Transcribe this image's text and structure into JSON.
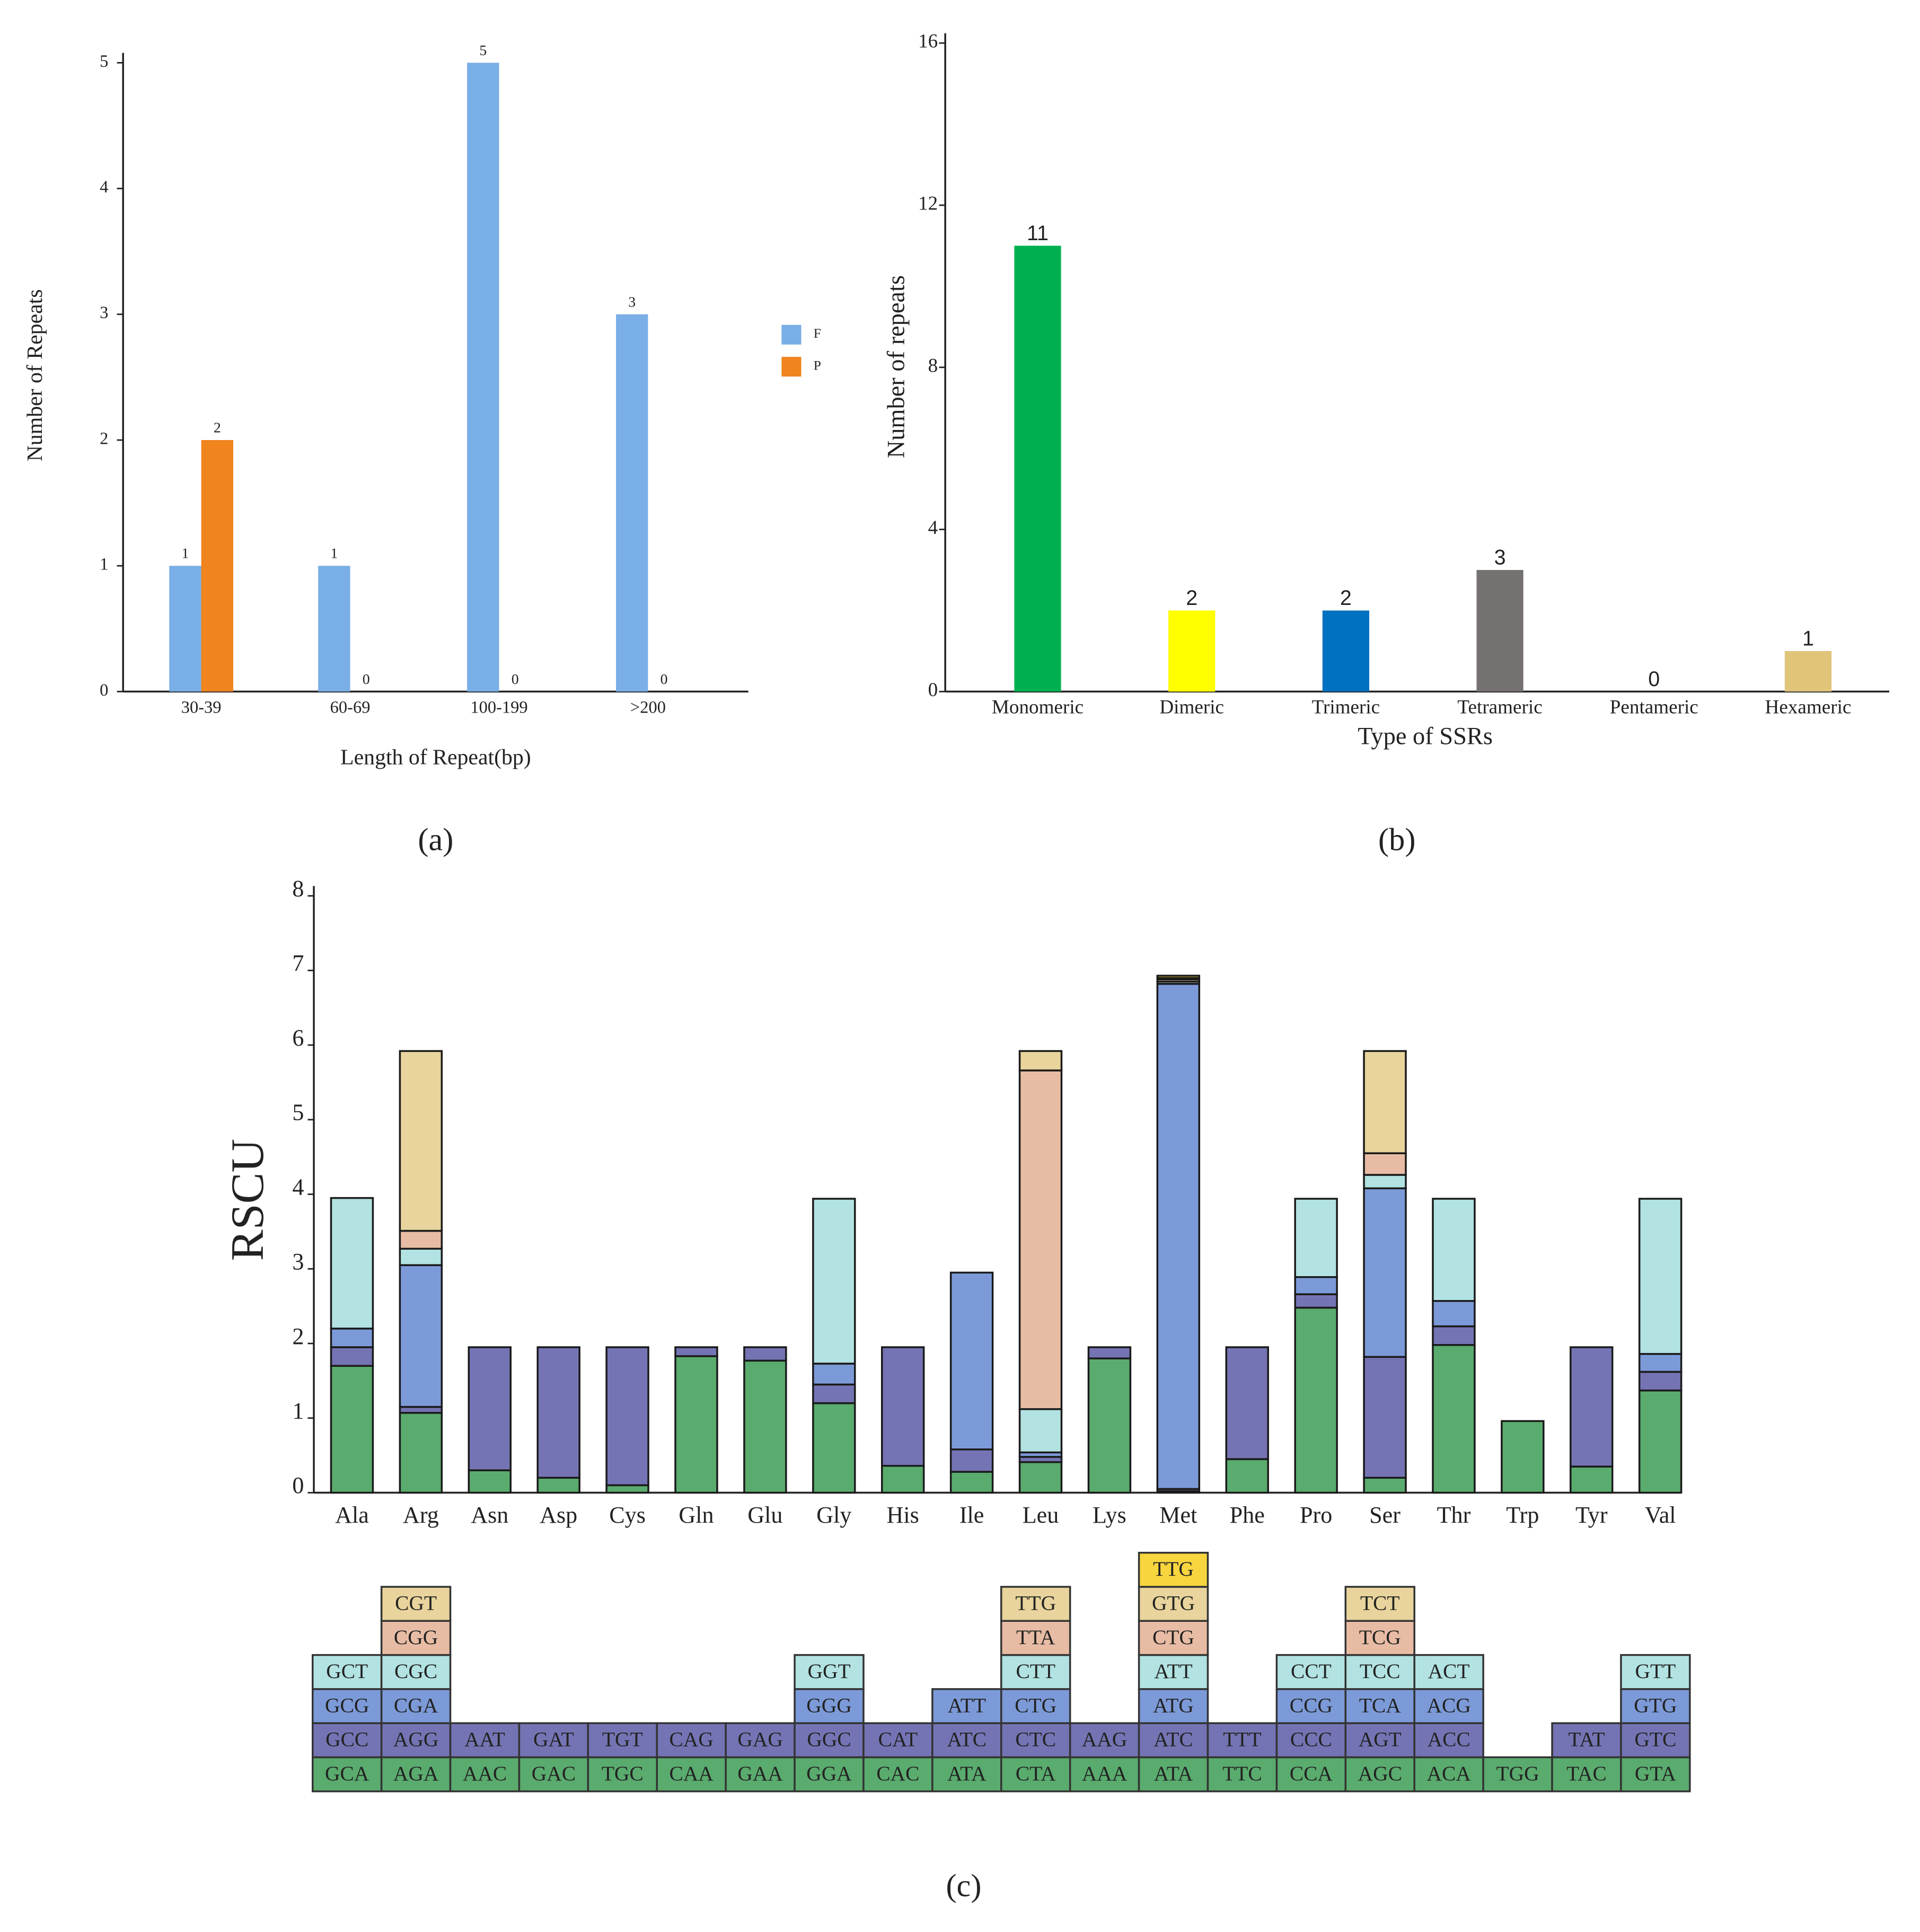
{
  "chart_data": [
    {
      "type": "bar",
      "panel_label": "(a)",
      "xlabel": "Length of Repeat(bp)",
      "ylabel": "Number of Repeats",
      "categories": [
        "30-39",
        "60-69",
        "100-199",
        ">200"
      ],
      "series": [
        {
          "name": "F",
          "color": "#7aaee6",
          "values": [
            1,
            1,
            5,
            3
          ]
        },
        {
          "name": "P",
          "color": "#f0841e",
          "values": [
            2,
            0,
            0,
            0
          ]
        }
      ],
      "ylim": [
        0,
        5
      ],
      "yticks": [
        0,
        1,
        2,
        3,
        4,
        5
      ],
      "legend": "right"
    },
    {
      "type": "bar",
      "panel_label": "(b)",
      "xlabel": "Type of SSRs",
      "ylabel": "Number of repeats",
      "categories": [
        "Monomeric",
        "Dimeric",
        "Trimeric",
        "Tetrameric",
        "Pentameric",
        "Hexameric"
      ],
      "values": [
        11,
        2,
        2,
        3,
        0,
        1
      ],
      "colors": [
        "#00b050",
        "#ffff00",
        "#0070c0",
        "#767171",
        "#b4c7e7",
        "#e0c47a"
      ],
      "ylim": [
        0,
        16
      ],
      "yticks": [
        0,
        4,
        8,
        12,
        16
      ]
    },
    {
      "type": "stacked_bar",
      "panel_label": "(c)",
      "ylabel": "RSCU",
      "categories": [
        "Ala",
        "Arg",
        "Asn",
        "Asp",
        "Cys",
        "Gln",
        "Glu",
        "Gly",
        "His",
        "Ile",
        "Leu",
        "Lys",
        "Met",
        "Phe",
        "Pro",
        "Ser",
        "Thr",
        "Trp",
        "Tyr",
        "Val"
      ],
      "series": [
        {
          "color": "#5aab6e",
          "codons": [
            "GCA",
            "AGA",
            "AAC",
            "GAC",
            "TGC",
            "CAA",
            "GAA",
            "GGA",
            "CAC",
            "ATA",
            "CTA",
            "AAA",
            "ATA",
            "TTC",
            "CCA",
            "AGC",
            "ACA",
            "TGG",
            "TAC",
            "GTA"
          ],
          "values": [
            1.7,
            1.07,
            0.3,
            0.2,
            0.1,
            1.83,
            1.77,
            1.2,
            0.36,
            0.28,
            0.41,
            1.8,
            0.02,
            0.45,
            2.48,
            0.2,
            1.98,
            0.96,
            0.35,
            1.37
          ]
        },
        {
          "color": "#7474b4",
          "codons": [
            "GCC",
            "AGG",
            "AAT",
            "GAT",
            "TGT",
            "CAG",
            "GAG",
            "GGC",
            "CAT",
            "ATC",
            "CTC",
            "AAG",
            "ATC",
            "TTT",
            "CCC",
            "AGT",
            "ACC",
            null,
            "TAT",
            "GTC"
          ],
          "values": [
            0.25,
            0.08,
            1.65,
            1.75,
            1.85,
            0.12,
            0.18,
            0.25,
            1.59,
            0.3,
            0.07,
            0.15,
            0.03,
            1.5,
            0.18,
            1.62,
            0.25,
            null,
            1.6,
            0.25
          ]
        },
        {
          "color": "#7c9ad8",
          "codons": [
            "GCG",
            "CGA",
            null,
            null,
            null,
            null,
            null,
            "GGG",
            null,
            "ATT",
            "CTG",
            null,
            "ATG",
            null,
            "CCG",
            "TCA",
            "ACG",
            null,
            null,
            "GTG"
          ],
          "values": [
            0.25,
            1.9,
            null,
            null,
            null,
            null,
            null,
            0.28,
            null,
            2.37,
            0.06,
            null,
            6.77,
            null,
            0.23,
            2.26,
            0.34,
            null,
            null,
            0.24
          ]
        },
        {
          "color": "#b2e2e2",
          "codons": [
            "GCT",
            "CGC",
            null,
            null,
            null,
            null,
            null,
            "GGT",
            null,
            null,
            "CTT",
            null,
            "ATT",
            null,
            "CCT",
            "TCC",
            "ACT",
            null,
            null,
            "GTT"
          ],
          "values": [
            1.75,
            0.22,
            null,
            null,
            null,
            null,
            null,
            2.21,
            null,
            null,
            0.58,
            null,
            0.03,
            null,
            1.05,
            0.18,
            1.37,
            null,
            null,
            2.08
          ]
        },
        {
          "color": "#e8bca4",
          "codons": [
            null,
            "CGG",
            null,
            null,
            null,
            null,
            null,
            null,
            null,
            null,
            "TTA",
            null,
            "CTG",
            null,
            null,
            "TCG",
            null,
            null,
            null,
            null
          ],
          "values": [
            null,
            0.24,
            null,
            null,
            null,
            null,
            null,
            null,
            null,
            null,
            4.54,
            null,
            0.03,
            null,
            null,
            0.29,
            null,
            null,
            null,
            null
          ]
        },
        {
          "color": "#e8d49c",
          "codons": [
            null,
            "CGT",
            null,
            null,
            null,
            null,
            null,
            null,
            null,
            null,
            "TTG",
            null,
            "GTG",
            null,
            null,
            "TCT",
            null,
            null,
            null,
            null
          ],
          "values": [
            null,
            2.41,
            null,
            null,
            null,
            null,
            null,
            null,
            null,
            null,
            0.26,
            null,
            0.02,
            null,
            null,
            1.37,
            null,
            null,
            null,
            null
          ]
        },
        {
          "color": "#f6d53e",
          "codons": [
            null,
            null,
            null,
            null,
            null,
            null,
            null,
            null,
            null,
            null,
            null,
            null,
            "TTG",
            null,
            null,
            null,
            null,
            null,
            null,
            null
          ],
          "values": [
            null,
            null,
            null,
            null,
            null,
            null,
            null,
            null,
            null,
            null,
            null,
            null,
            0.03,
            null,
            null,
            null,
            null,
            null,
            null,
            null
          ]
        }
      ],
      "ylim": [
        0,
        8
      ],
      "yticks": [
        0,
        1,
        2,
        3,
        4,
        5,
        6,
        7,
        8
      ]
    }
  ]
}
